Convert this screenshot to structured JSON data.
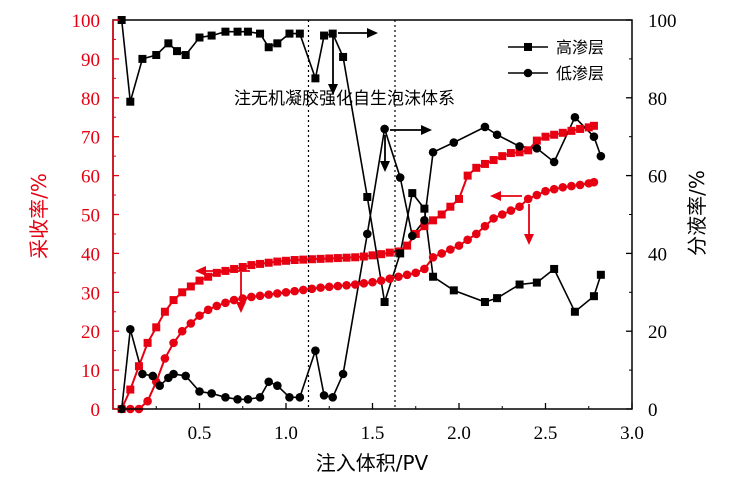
{
  "chart_data": {
    "type": "line",
    "xlabel": "注入体积/PV",
    "ylabel_left": "采收率/%",
    "ylabel_right": "分液率/%",
    "annotation": "注无机凝胶强化自生泡沫体系",
    "xlim": [
      0,
      3.0
    ],
    "ylim_left": [
      0,
      100
    ],
    "ylim_right": [
      0,
      100
    ],
    "x_ticks": [
      "0.5",
      "1.0",
      "1.5",
      "2.0",
      "2.5",
      "3.0"
    ],
    "y_left_ticks": [
      "0",
      "10",
      "20",
      "30",
      "40",
      "50",
      "60",
      "70",
      "80",
      "90",
      "100"
    ],
    "y_right_ticks": [
      "0",
      "20",
      "40",
      "60",
      "80",
      "100"
    ],
    "injection_markers_x": [
      1.13,
      1.63
    ],
    "colors": {
      "recovery": "#e60012",
      "split": "#000000",
      "left_axis": "#e60012",
      "right_axis": "#000000"
    },
    "legend": [
      {
        "label": "高渗层",
        "marker": "square"
      },
      {
        "label": "低渗层",
        "marker": "circle"
      }
    ],
    "series": [
      {
        "name": "高渗层",
        "axis": "left",
        "marker": "square",
        "color": "#e60012",
        "x": [
          0.05,
          0.1,
          0.15,
          0.2,
          0.25,
          0.3,
          0.35,
          0.4,
          0.45,
          0.5,
          0.55,
          0.6,
          0.65,
          0.7,
          0.75,
          0.8,
          0.85,
          0.9,
          0.95,
          1.0,
          1.05,
          1.1,
          1.15,
          1.2,
          1.25,
          1.3,
          1.35,
          1.4,
          1.45,
          1.5,
          1.55,
          1.6,
          1.65,
          1.7,
          1.75,
          1.8,
          1.85,
          1.9,
          1.95,
          2.0,
          2.05,
          2.1,
          2.15,
          2.2,
          2.25,
          2.3,
          2.35,
          2.4,
          2.45,
          2.5,
          2.55,
          2.6,
          2.65,
          2.7,
          2.75,
          2.78
        ],
        "y": [
          0,
          5,
          11,
          17,
          21,
          25,
          28,
          30,
          31.5,
          33,
          34,
          35,
          35.5,
          36,
          36.5,
          37,
          37.3,
          37.6,
          37.9,
          38.1,
          38.3,
          38.4,
          38.5,
          38.6,
          38.7,
          38.8,
          38.9,
          39,
          39.2,
          39.5,
          39.8,
          40.2,
          40.5,
          42,
          45,
          47,
          48.5,
          50,
          52,
          54,
          60,
          62,
          63,
          64,
          65,
          65.8,
          66,
          66.5,
          69,
          70,
          70.5,
          71,
          71.5,
          72,
          72.4,
          72.8
        ]
      },
      {
        "name": "",
        "axis": "left",
        "marker": "circle",
        "color": "#e60012",
        "x": [
          0.1,
          0.15,
          0.2,
          0.25,
          0.3,
          0.35,
          0.4,
          0.45,
          0.5,
          0.55,
          0.6,
          0.65,
          0.7,
          0.75,
          0.8,
          0.85,
          0.9,
          0.95,
          1.0,
          1.05,
          1.1,
          1.15,
          1.2,
          1.25,
          1.3,
          1.35,
          1.4,
          1.45,
          1.5,
          1.55,
          1.6,
          1.65,
          1.7,
          1.75,
          1.8,
          1.85,
          1.9,
          1.95,
          2.0,
          2.05,
          2.1,
          2.15,
          2.2,
          2.25,
          2.3,
          2.35,
          2.4,
          2.45,
          2.5,
          2.55,
          2.6,
          2.65,
          2.7,
          2.75,
          2.78
        ],
        "y": [
          0,
          0,
          2,
          7,
          13,
          17,
          20,
          22,
          24,
          25.5,
          26.5,
          27.3,
          28,
          28.4,
          28.8,
          29.1,
          29.4,
          29.7,
          30,
          30.3,
          30.6,
          30.9,
          31.2,
          31.4,
          31.6,
          31.8,
          32,
          32.3,
          32.6,
          33,
          33.5,
          34,
          34.5,
          35,
          36,
          39,
          40,
          41,
          42,
          43.5,
          45,
          47,
          49,
          50,
          51,
          52,
          54,
          55,
          56,
          56.5,
          57,
          57.3,
          57.6,
          58,
          58.3
        ]
      },
      {
        "name": "",
        "axis": "right",
        "marker": "square",
        "color": "#000000",
        "x": [
          0.05,
          0.1,
          0.17,
          0.25,
          0.32,
          0.37,
          0.42,
          0.5,
          0.57,
          0.65,
          0.72,
          0.78,
          0.85,
          0.9,
          0.95,
          1.02,
          1.08,
          1.17,
          1.22,
          1.27,
          1.33,
          1.47,
          1.57,
          1.66,
          1.73,
          1.8,
          1.85,
          1.97,
          2.15,
          2.22,
          2.35,
          2.45,
          2.55,
          2.67,
          2.78,
          2.82
        ],
        "y": [
          100,
          79,
          90,
          91,
          94,
          92,
          91,
          95.5,
          96,
          97,
          97,
          97,
          96.5,
          93,
          94,
          96.5,
          96.5,
          85,
          96,
          96.5,
          90.5,
          54.5,
          27.5,
          40,
          55.5,
          51.5,
          34,
          30.5,
          27.5,
          28.5,
          32,
          32.5,
          36,
          25,
          29,
          34.5
        ]
      },
      {
        "name": "",
        "axis": "right",
        "marker": "circle",
        "color": "#000000",
        "x": [
          0.05,
          0.1,
          0.17,
          0.23,
          0.27,
          0.32,
          0.35,
          0.42,
          0.5,
          0.57,
          0.65,
          0.72,
          0.78,
          0.85,
          0.9,
          0.95,
          1.02,
          1.08,
          1.17,
          1.22,
          1.27,
          1.33,
          1.47,
          1.57,
          1.66,
          1.73,
          1.8,
          1.85,
          1.97,
          2.15,
          2.22,
          2.35,
          2.45,
          2.55,
          2.67,
          2.78,
          2.82
        ],
        "y": [
          0,
          20.5,
          9,
          8.5,
          6,
          8,
          9,
          8.5,
          4.5,
          4,
          3,
          2.5,
          2.5,
          3,
          7,
          6,
          3,
          3,
          15,
          3.5,
          3,
          9,
          45,
          72,
          59.5,
          44.5,
          48.5,
          66,
          68.5,
          72.5,
          70.5,
          67.5,
          67,
          63.5,
          75,
          70,
          65
        ]
      }
    ]
  }
}
